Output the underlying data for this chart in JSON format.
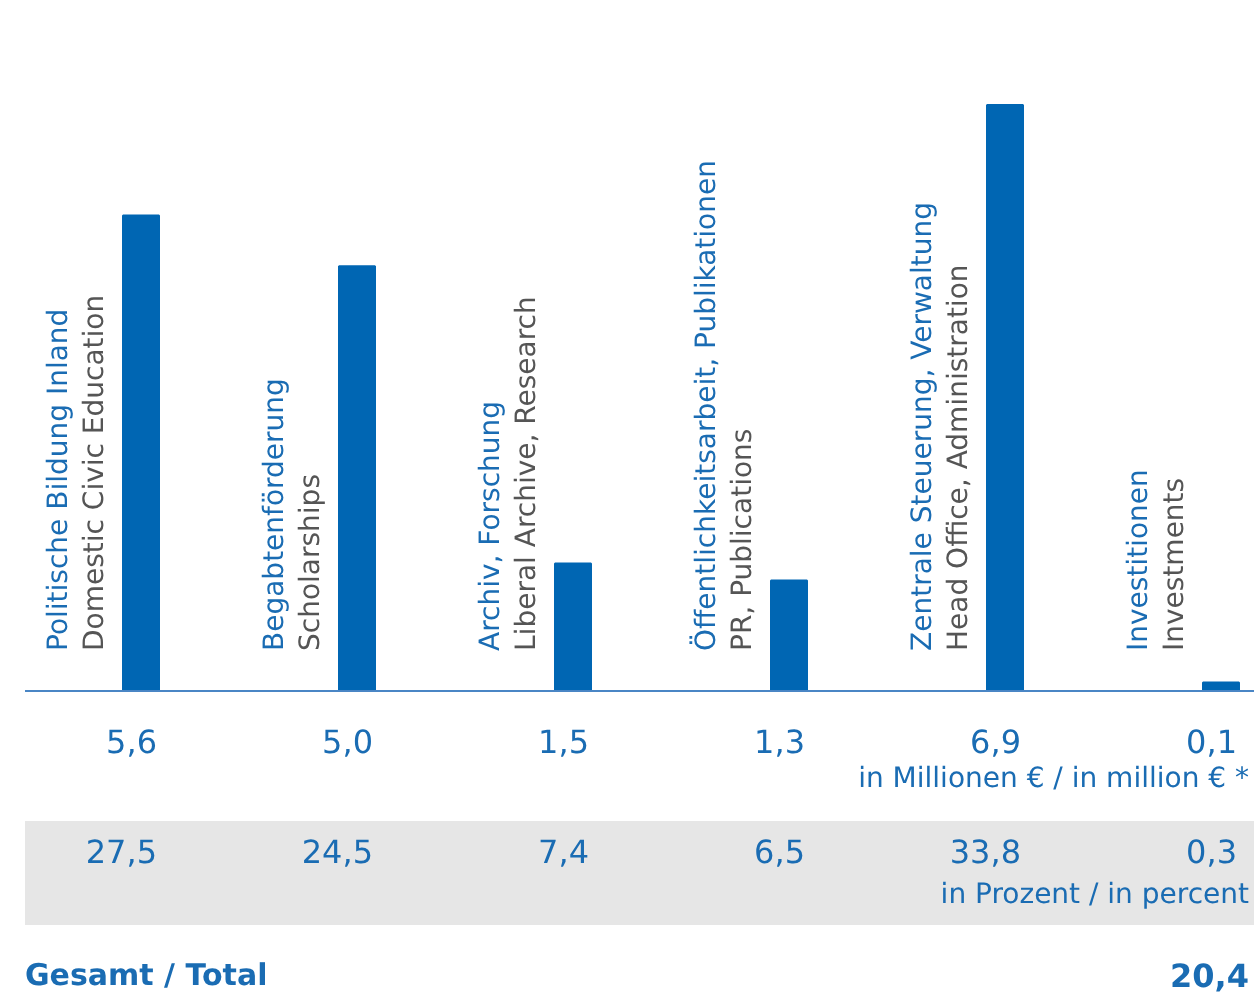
{
  "chart_data": {
    "type": "bar",
    "categories": [
      "Politische Bildung Inland\nDomestic Civic Education",
      "Begabtenförderung\nScholarships",
      "Archiv, Forschung\nLiberal Archive, Research",
      "Öffentlichkeitsarbeit, Publikationen\nPR, Publications",
      "Zentrale Steuerung, Verwaltung\nHead Office, Administration",
      "Investitionen\nInvestments"
    ],
    "values": [
      5.6,
      5.0,
      1.5,
      1.3,
      6.9,
      0.1
    ],
    "value_labels": [
      "5,6",
      "5,0",
      "1,5",
      "1,3",
      "6,9",
      "0,1"
    ],
    "color": "#0066b3",
    "annotations": [
      "in Millionen € / in million € *",
      "27,5",
      "24,5",
      "7,4",
      "6,5",
      "33,8",
      "0,3",
      "in Prozent / in percent",
      "Gesamt / Total",
      "20,4"
    ]
  }
}
